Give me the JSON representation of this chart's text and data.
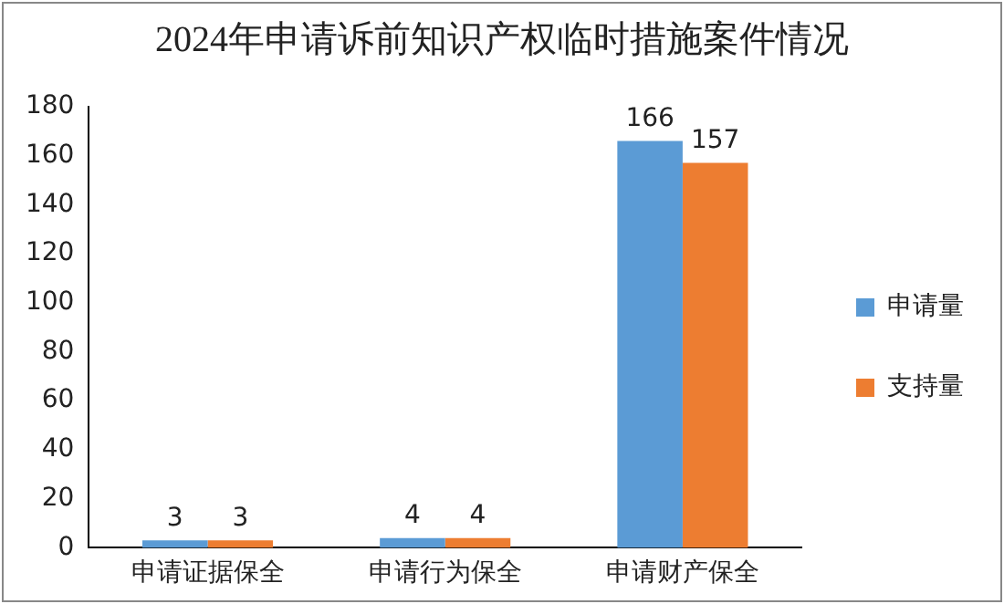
{
  "chart_data": {
    "type": "bar",
    "title": "2024年申请诉前知识产权临时措施案件情况",
    "categories": [
      "申请证据保全",
      "申请行为保全",
      "申请财产保全"
    ],
    "series": [
      {
        "name": "申请量",
        "color": "#5b9bd5",
        "values": [
          3,
          4,
          166
        ]
      },
      {
        "name": "支持量",
        "color": "#ed7d31",
        "values": [
          3,
          4,
          157
        ]
      }
    ],
    "ylim": [
      0,
      180
    ],
    "yticks": [
      0,
      20,
      40,
      60,
      80,
      100,
      120,
      140,
      160,
      180
    ],
    "grid": false,
    "legend": "right",
    "data_labels": true
  }
}
